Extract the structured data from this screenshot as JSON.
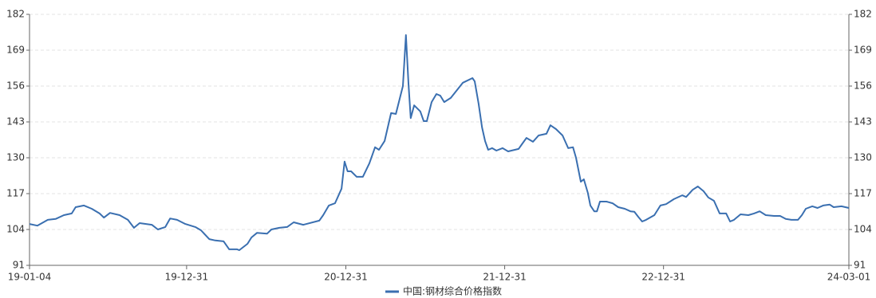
{
  "chart_data": {
    "type": "line",
    "x": [
      "19-01-04",
      "19-01-22",
      "19-02-15",
      "19-03-05",
      "19-03-24",
      "19-04-11",
      "19-04-20",
      "19-05-09",
      "19-05-27",
      "19-06-14",
      "19-06-24",
      "19-07-08",
      "19-07-30",
      "19-08-18",
      "19-09-01",
      "19-09-14",
      "19-10-12",
      "19-10-26",
      "19-11-12",
      "19-11-23",
      "19-12-09",
      "19-12-28",
      "20-01-20",
      "20-02-02",
      "20-02-21",
      "20-03-06",
      "20-03-25",
      "20-04-07",
      "20-04-25",
      "20-04-30",
      "20-05-19",
      "20-05-28",
      "20-06-10",
      "20-07-03",
      "20-07-13",
      "20-07-31",
      "20-08-18",
      "20-09-02",
      "20-09-24",
      "20-10-31",
      "20-11-09",
      "20-11-22",
      "20-12-06",
      "20-12-21",
      "20-12-28",
      "21-01-04",
      "21-01-12",
      "21-01-25",
      "21-02-08",
      "21-02-23",
      "21-03-08",
      "21-03-17",
      "21-03-30",
      "21-04-14",
      "21-04-25",
      "21-05-11",
      "21-05-18",
      "21-05-24",
      "21-05-29",
      "21-06-06",
      "21-06-20",
      "21-06-28",
      "21-07-05",
      "21-07-16",
      "21-07-27",
      "21-08-05",
      "21-08-14",
      "21-08-29",
      "21-09-26",
      "21-10-18",
      "21-10-23",
      "21-11-01",
      "21-11-09",
      "21-11-16",
      "21-11-23",
      "21-12-02",
      "21-12-12",
      "21-12-26",
      "22-01-08",
      "22-02-01",
      "22-02-10",
      "22-02-19",
      "22-03-06",
      "22-03-19",
      "22-04-06",
      "22-04-15",
      "22-04-28",
      "22-05-13",
      "22-05-26",
      "22-06-06",
      "22-06-13",
      "22-06-24",
      "22-07-01",
      "22-07-10",
      "22-07-16",
      "22-07-25",
      "22-07-31",
      "22-08-07",
      "22-08-22",
      "22-09-05",
      "22-09-18",
      "22-10-03",
      "22-10-16",
      "22-10-25",
      "22-11-03",
      "22-11-12",
      "22-11-21",
      "22-12-10",
      "22-12-24",
      "23-01-06",
      "23-01-24",
      "23-02-12",
      "23-02-21",
      "23-03-08",
      "23-03-20",
      "23-04-02",
      "23-04-13",
      "23-04-26",
      "23-05-09",
      "23-05-24",
      "23-06-02",
      "23-06-11",
      "23-06-26",
      "23-07-14",
      "23-07-27",
      "23-08-09",
      "23-08-23",
      "23-09-11",
      "23-09-25",
      "23-10-08",
      "23-10-21",
      "23-11-05",
      "23-11-14",
      "23-11-23",
      "23-12-08",
      "23-12-20",
      "24-01-02",
      "24-01-17",
      "24-01-26",
      "24-02-13",
      "24-03-01"
    ],
    "series": [
      {
        "name": "中国:钢材综合价格指数",
        "color": "#3a6fb0",
        "values": [
          106.0,
          105.4,
          107.5,
          107.8,
          109.2,
          109.8,
          112.1,
          112.7,
          111.5,
          109.8,
          108.3,
          110.0,
          109.2,
          107.5,
          104.6,
          106.3,
          105.7,
          104.0,
          104.9,
          108.0,
          107.5,
          106.0,
          104.9,
          103.7,
          100.5,
          100.0,
          99.7,
          96.8,
          96.8,
          96.5,
          98.8,
          101.1,
          102.8,
          102.5,
          104.0,
          104.6,
          104.9,
          106.6,
          105.7,
          107.2,
          109.2,
          112.7,
          113.5,
          118.8,
          128.6,
          125.1,
          125.1,
          123.1,
          123.1,
          128.0,
          133.8,
          132.9,
          136.1,
          146.2,
          145.9,
          156.0,
          174.5,
          156.9,
          144.4,
          149.0,
          146.8,
          143.3,
          143.3,
          150.2,
          153.1,
          152.5,
          150.2,
          151.7,
          157.2,
          158.9,
          157.7,
          149.6,
          141.0,
          136.1,
          132.9,
          133.5,
          132.6,
          133.5,
          132.3,
          133.2,
          135.2,
          137.2,
          135.8,
          138.1,
          138.7,
          141.8,
          140.4,
          138.1,
          133.5,
          133.8,
          130.0,
          121.3,
          122.2,
          117.3,
          112.7,
          110.6,
          110.6,
          114.1,
          114.1,
          113.5,
          112.1,
          111.5,
          110.6,
          110.4,
          108.6,
          106.9,
          107.5,
          109.2,
          112.7,
          113.2,
          115.0,
          116.4,
          115.8,
          118.4,
          119.6,
          117.9,
          115.6,
          114.4,
          109.8,
          109.8,
          106.9,
          107.5,
          109.5,
          109.2,
          109.8,
          110.6,
          109.2,
          108.9,
          108.9,
          107.8,
          107.5,
          107.5,
          109.2,
          111.5,
          112.4,
          111.8,
          112.7,
          113.0,
          112.1,
          112.4,
          111.8
        ]
      }
    ],
    "xlim": [
      "19-01-04",
      "24-03-01"
    ],
    "xticks": [
      "19-01-04",
      "19-12-31",
      "20-12-31",
      "21-12-31",
      "22-12-31",
      "24-03-01"
    ],
    "ylim": [
      91,
      182
    ],
    "yticks": [
      91,
      104,
      117,
      130,
      143,
      156,
      169,
      182
    ],
    "y2lim": [
      91,
      182
    ],
    "y2ticks": [
      91,
      104,
      117,
      130,
      143,
      156,
      169,
      182
    ],
    "grid": true,
    "legend": "bottom"
  }
}
